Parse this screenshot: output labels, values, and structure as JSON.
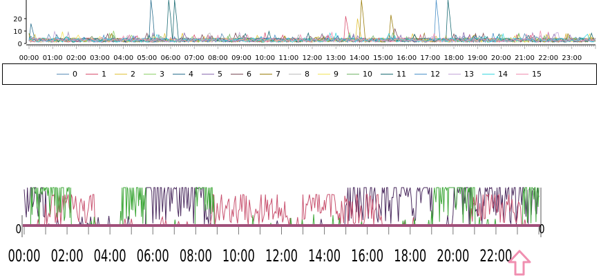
{
  "chart_data": [
    {
      "type": "line",
      "title": "",
      "xlabel": "",
      "ylabel": "",
      "ylim": [
        0,
        35
      ],
      "y_ticks": [
        "0",
        "10",
        "20"
      ],
      "x_tick_labels": [
        "00:00",
        "01:00",
        "02:00",
        "03:00",
        "04:00",
        "05:00",
        "06:00",
        "07:00",
        "08:00",
        "09:00",
        "10:00",
        "11:00",
        "12:00",
        "13:00",
        "14:00",
        "15:00",
        "16:00",
        "17:00",
        "18:00",
        "19:00",
        "20:00",
        "21:00",
        "22:00",
        "23:00"
      ],
      "grid": false,
      "legend_position": "bottom",
      "series": [
        {
          "name": "0",
          "color": "#5b8db8"
        },
        {
          "name": "1",
          "color": "#d94f6e"
        },
        {
          "name": "2",
          "color": "#e0c23a"
        },
        {
          "name": "3",
          "color": "#8fd16a"
        },
        {
          "name": "4",
          "color": "#2a6f8e"
        },
        {
          "name": "5",
          "color": "#8b6bb0"
        },
        {
          "name": "6",
          "color": "#7a4a57"
        },
        {
          "name": "7",
          "color": "#9a7d0a"
        },
        {
          "name": "8",
          "color": "#bdbdbd"
        },
        {
          "name": "9",
          "color": "#f2e35b"
        },
        {
          "name": "10",
          "color": "#74b56a"
        },
        {
          "name": "11",
          "color": "#1b6b73"
        },
        {
          "name": "12",
          "color": "#4a90c8"
        },
        {
          "name": "13",
          "color": "#c3a5d8"
        },
        {
          "name": "14",
          "color": "#3ad6e0"
        },
        {
          "name": "15",
          "color": "#f08fb0"
        }
      ],
      "spikes": [
        {
          "series": "4",
          "x": "05:10",
          "y": 35
        },
        {
          "series": "11",
          "x": "05:55",
          "y": 35
        },
        {
          "series": "11",
          "x": "06:10",
          "y": 35
        },
        {
          "series": "1",
          "x": "13:25",
          "y": 22
        },
        {
          "series": "7",
          "x": "14:05",
          "y": 35
        },
        {
          "series": "7",
          "x": "15:20",
          "y": 23
        },
        {
          "series": "12",
          "x": "17:15",
          "y": 35
        },
        {
          "series": "11",
          "x": "17:45",
          "y": 35
        },
        {
          "series": "2",
          "x": "13:55",
          "y": 20
        },
        {
          "series": "4",
          "x": "00:05",
          "y": 16
        },
        {
          "series": "6",
          "x": "15:30",
          "y": 12
        }
      ]
    },
    {
      "type": "line",
      "title": "",
      "xlabel": "",
      "ylabel": "",
      "y_left_label": "0",
      "y_right_label": "0",
      "x_tick_labels": [
        "00:00",
        "02:00",
        "04:00",
        "06:00",
        "08:00",
        "10:00",
        "12:00",
        "14:00",
        "16:00",
        "18:00",
        "20:00",
        "22:00"
      ],
      "grid": false,
      "series": [
        {
          "name": "dark purple",
          "color": "#4a2a5e"
        },
        {
          "name": "pink",
          "color": "#c8506e"
        },
        {
          "name": "green",
          "color": "#3fa83a"
        },
        {
          "name": "baseline",
          "color": "#a0507a"
        }
      ]
    }
  ],
  "pointer": {
    "color": "#f08fb0",
    "icon": "up-arrow-icon"
  }
}
